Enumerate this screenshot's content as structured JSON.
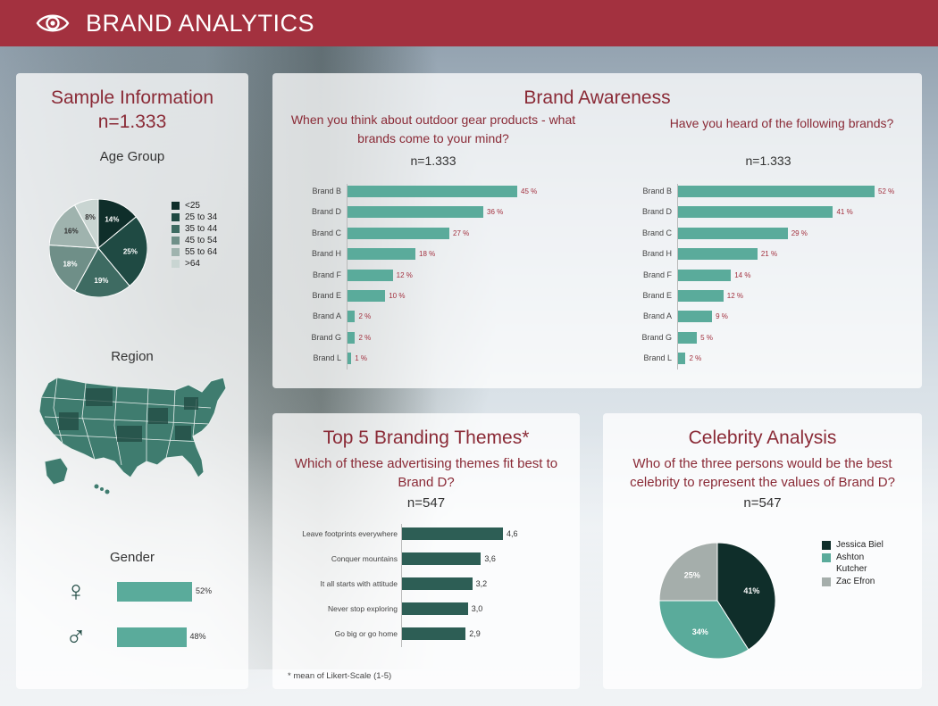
{
  "header": {
    "title": "BRAND ANALYTICS"
  },
  "sample": {
    "title": "Sample Information",
    "n": "n=1.333",
    "age_group_title": "Age Group",
    "age_slices": [
      {
        "label": "<25",
        "value": 14,
        "pct": "14%",
        "color": "#0f2e2a"
      },
      {
        "label": "25 to 34",
        "value": 25,
        "pct": "25%",
        "color": "#1f4a43"
      },
      {
        "label": "35 to 44",
        "value": 19,
        "pct": "19%",
        "color": "#3e6b62"
      },
      {
        "label": "45 to 54",
        "value": 18,
        "pct": "18%",
        "color": "#6f8f88"
      },
      {
        "label": "55 to 64",
        "value": 16,
        "pct": "16%",
        "color": "#9fb3ae"
      },
      {
        "label": ">64",
        "value": 8,
        "pct": "8%",
        "color": "#c9d5d2"
      }
    ],
    "region_title": "Region",
    "gender_title": "Gender",
    "gender": [
      {
        "icon": "female-icon",
        "glyph": "♀",
        "value": 52,
        "pct": "52%"
      },
      {
        "icon": "male-icon",
        "glyph": "♂",
        "value": 48,
        "pct": "48%"
      }
    ]
  },
  "awareness": {
    "title": "Brand Awareness",
    "left": {
      "question": "When you think about outdoor gear products  - what brands come to your mind?",
      "n": "n=1.333",
      "rows": [
        {
          "brand": "Brand B",
          "value": 45,
          "label": "45 %"
        },
        {
          "brand": "Brand D",
          "value": 36,
          "label": "36 %"
        },
        {
          "brand": "Brand C",
          "value": 27,
          "label": "27 %"
        },
        {
          "brand": "Brand H",
          "value": 18,
          "label": "18 %"
        },
        {
          "brand": "Brand F",
          "value": 12,
          "label": "12 %"
        },
        {
          "brand": "Brand E",
          "value": 10,
          "label": "10 %"
        },
        {
          "brand": "Brand A",
          "value": 2,
          "label": "2 %"
        },
        {
          "brand": "Brand G",
          "value": 2,
          "label": "2 %"
        },
        {
          "brand": "Brand L",
          "value": 1,
          "label": "1 %"
        }
      ]
    },
    "right": {
      "question": "Have you heard of the following brands?",
      "n": "n=1.333",
      "rows": [
        {
          "brand": "Brand B",
          "value": 52,
          "label": "52 %"
        },
        {
          "brand": "Brand D",
          "value": 41,
          "label": "41 %"
        },
        {
          "brand": "Brand C",
          "value": 29,
          "label": "29 %"
        },
        {
          "brand": "Brand H",
          "value": 21,
          "label": "21 %"
        },
        {
          "brand": "Brand F",
          "value": 14,
          "label": "14 %"
        },
        {
          "brand": "Brand E",
          "value": 12,
          "label": "12 %"
        },
        {
          "brand": "Brand A",
          "value": 9,
          "label": "9 %"
        },
        {
          "brand": "Brand G",
          "value": 5,
          "label": "5 %"
        },
        {
          "brand": "Brand L",
          "value": 2,
          "label": "2 %"
        }
      ]
    }
  },
  "themes": {
    "title": "Top 5 Branding Themes*",
    "question": "Which of these advertising themes fit best to Brand D?",
    "n": "n=547",
    "rows": [
      {
        "label": "Leave footprints everywhere",
        "value": 4.6,
        "text": "4,6"
      },
      {
        "label": "Conquer mountains",
        "value": 3.6,
        "text": "3,6"
      },
      {
        "label": "It all starts with attitude",
        "value": 3.2,
        "text": "3,2"
      },
      {
        "label": "Never stop exploring",
        "value": 3.0,
        "text": "3,0"
      },
      {
        "label": "Go big or go home",
        "value": 2.9,
        "text": "2,9"
      }
    ],
    "footnote": "* mean of Likert-Scale (1-5)"
  },
  "celebrity": {
    "title": "Celebrity Analysis",
    "question": "Who of the three persons would be the best celebrity to represent the values of Brand D?",
    "n": "n=547",
    "slices": [
      {
        "label": "Jessica Biel",
        "value": 41,
        "pct": "41%",
        "color": "#0f2e2a"
      },
      {
        "label": "Ashton Kutcher",
        "value": 34,
        "pct": "34%",
        "color": "#5aab9b"
      },
      {
        "label": "Zac Efron",
        "value": 25,
        "pct": "25%",
        "color": "#a5aeab"
      }
    ]
  },
  "colors": {
    "accent": "#a3313f",
    "bar": "#5aab9b",
    "theme_bar": "#2d5e55",
    "map": "#3f7c6f"
  }
}
